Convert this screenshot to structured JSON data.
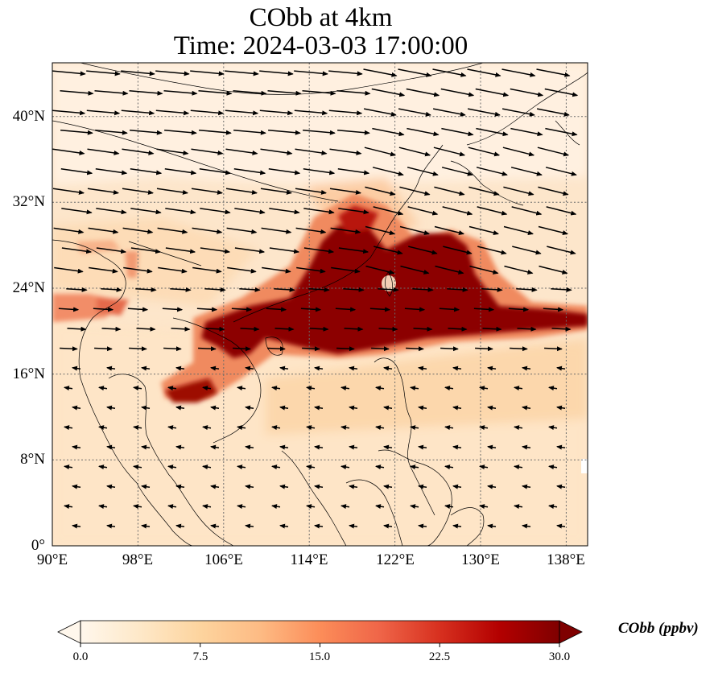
{
  "title": {
    "line1": "CObb at 4km",
    "line2": "Time: 2024-03-03 17:00:00"
  },
  "lat_ticks": [
    {
      "label": "40°N",
      "value": 40
    },
    {
      "label": "32°N",
      "value": 32
    },
    {
      "label": "24°N",
      "value": 24
    },
    {
      "label": "16°N",
      "value": 16
    },
    {
      "label": "8°N",
      "value": 8
    },
    {
      "label": "0°",
      "value": 0
    }
  ],
  "lon_ticks": [
    {
      "label": "90°E",
      "value": 90
    },
    {
      "label": "98°E",
      "value": 98
    },
    {
      "label": "106°E",
      "value": 106
    },
    {
      "label": "114°E",
      "value": 114
    },
    {
      "label": "122°E",
      "value": 122
    },
    {
      "label": "130°E",
      "value": 130
    },
    {
      "label": "138°E",
      "value": 138
    }
  ],
  "extent": {
    "lon_min": 90,
    "lon_max": 140,
    "lat_min": 0,
    "lat_max": 45
  },
  "colorbar": {
    "label": "CObb (ppbv)",
    "min": 0,
    "max": 30,
    "extend": "both",
    "ticks": [
      "0.0",
      "7.5",
      "15.0",
      "22.5",
      "30.0"
    ],
    "colors": [
      "#fff7ec",
      "#fee8c8",
      "#fdd49e",
      "#fdbb84",
      "#fc8d59",
      "#ef6548",
      "#d7301f",
      "#b30000",
      "#7f0000"
    ]
  },
  "gridlines": "dotted"
}
